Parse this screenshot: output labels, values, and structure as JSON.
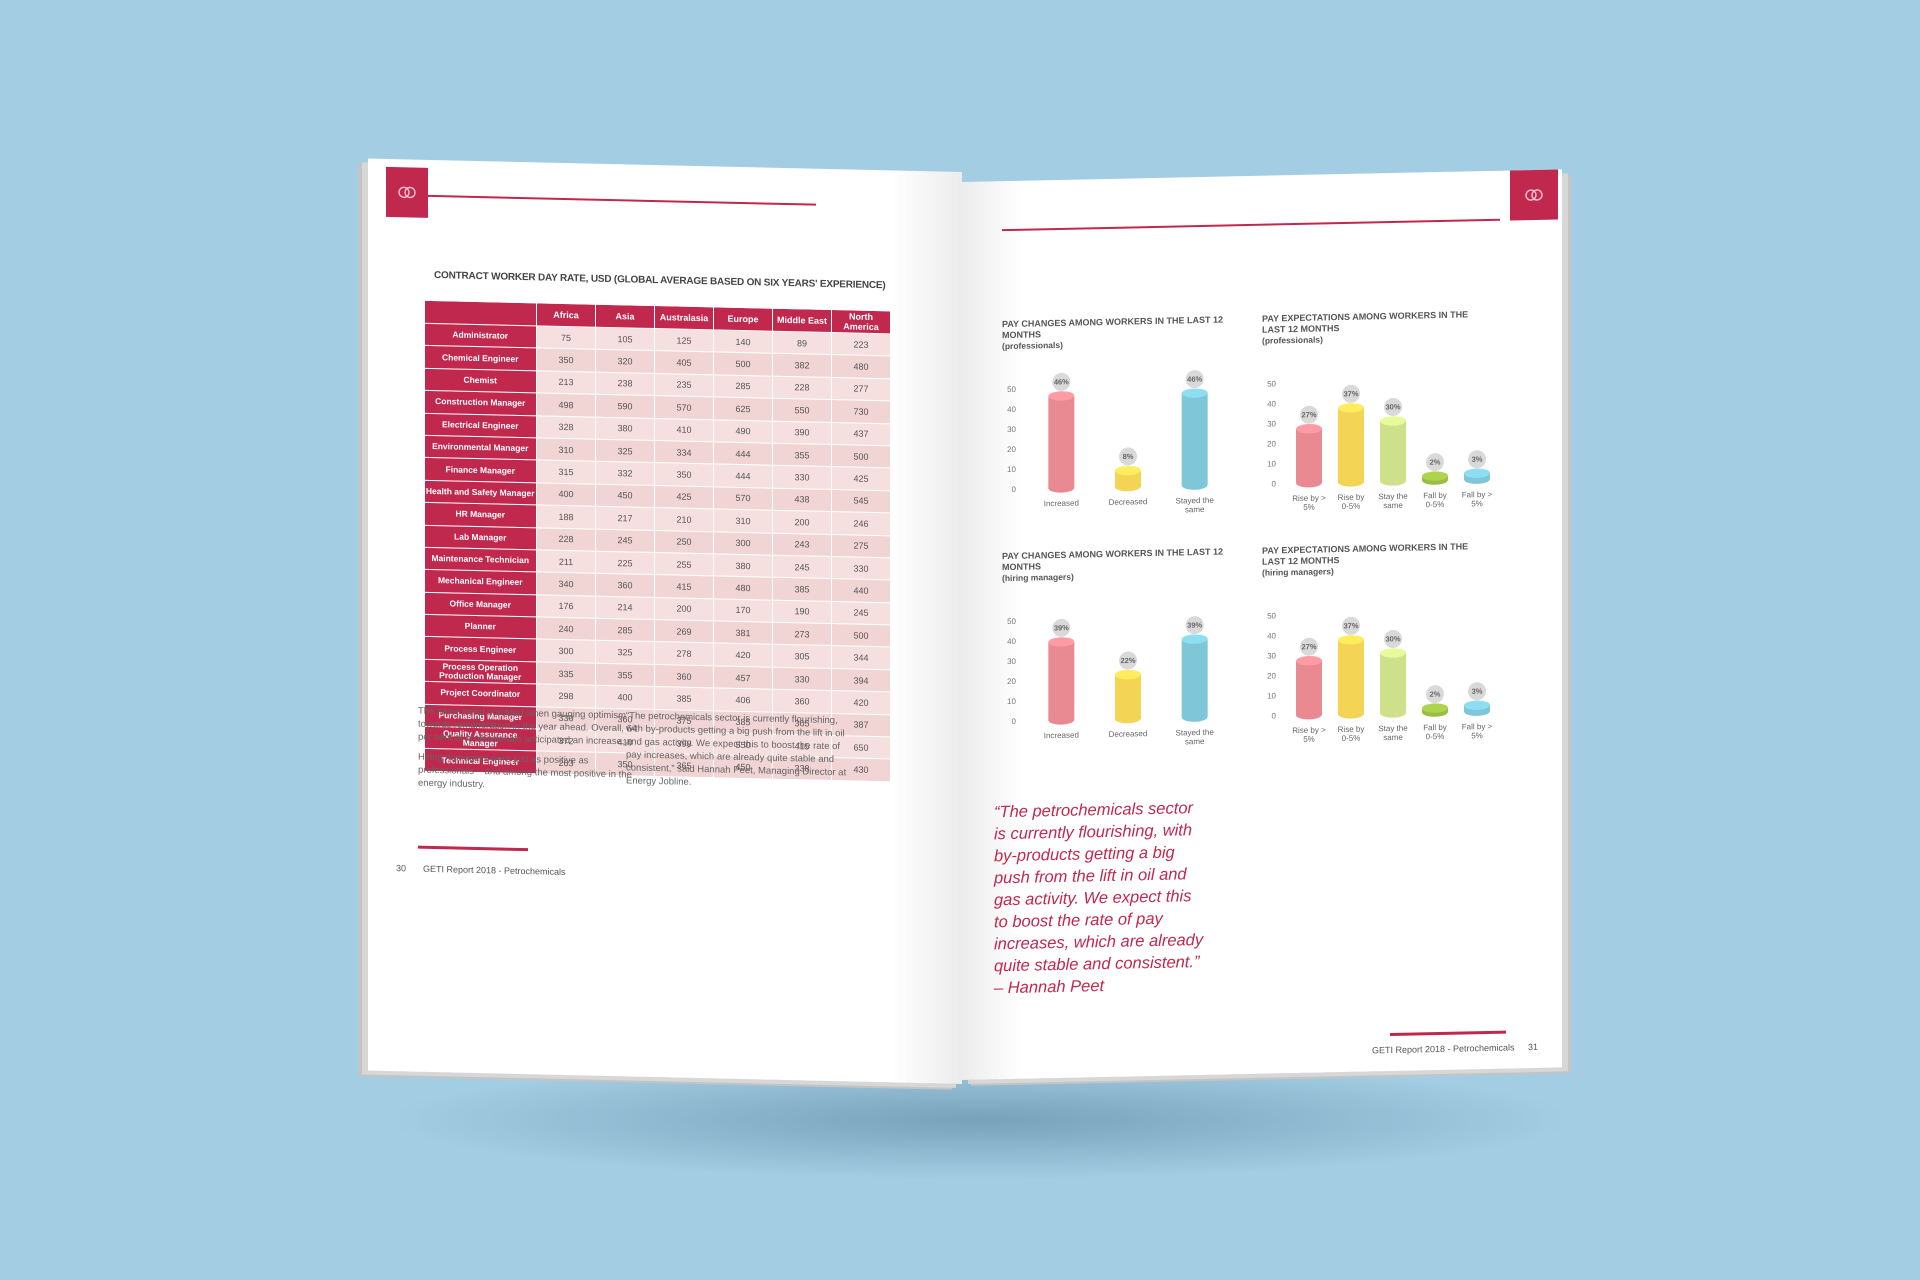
{
  "left_page": {
    "table_title": "CONTRACT WORKER DAY RATE, USD (GLOBAL AVERAGE BASED ON SIX YEARS' EXPERIENCE)",
    "columns": [
      "Africa",
      "Asia",
      "Australasia",
      "Europe",
      "Middle East",
      "North America"
    ],
    "rows": [
      {
        "role": "Administrator",
        "values": [
          "75",
          "105",
          "125",
          "140",
          "89",
          "223"
        ]
      },
      {
        "role": "Chemical Engineer",
        "values": [
          "350",
          "320",
          "405",
          "500",
          "382",
          "480"
        ]
      },
      {
        "role": "Chemist",
        "values": [
          "213",
          "238",
          "235",
          "285",
          "228",
          "277"
        ]
      },
      {
        "role": "Construction Manager",
        "values": [
          "498",
          "590",
          "570",
          "625",
          "550",
          "730"
        ]
      },
      {
        "role": "Electrical Engineer",
        "values": [
          "328",
          "380",
          "410",
          "490",
          "390",
          "437"
        ]
      },
      {
        "role": "Environmental Manager",
        "values": [
          "310",
          "325",
          "334",
          "444",
          "355",
          "500"
        ]
      },
      {
        "role": "Finance Manager",
        "values": [
          "315",
          "332",
          "350",
          "444",
          "330",
          "425"
        ]
      },
      {
        "role": "Health and Safety Manager",
        "values": [
          "400",
          "450",
          "425",
          "570",
          "438",
          "545"
        ]
      },
      {
        "role": "HR Manager",
        "values": [
          "188",
          "217",
          "210",
          "310",
          "200",
          "246"
        ]
      },
      {
        "role": "Lab Manager",
        "values": [
          "228",
          "245",
          "250",
          "300",
          "243",
          "275"
        ]
      },
      {
        "role": "Maintenance Technician",
        "values": [
          "211",
          "225",
          "255",
          "380",
          "245",
          "330"
        ]
      },
      {
        "role": "Mechanical Engineer",
        "values": [
          "340",
          "360",
          "415",
          "480",
          "385",
          "440"
        ]
      },
      {
        "role": "Office Manager",
        "values": [
          "176",
          "214",
          "200",
          "170",
          "190",
          "245"
        ]
      },
      {
        "role": "Planner",
        "values": [
          "240",
          "285",
          "269",
          "381",
          "273",
          "500"
        ]
      },
      {
        "role": "Process Engineer",
        "values": [
          "300",
          "325",
          "278",
          "420",
          "305",
          "344"
        ]
      },
      {
        "role": "Process Operation Production Manager",
        "values": [
          "335",
          "355",
          "360",
          "457",
          "330",
          "394"
        ]
      },
      {
        "role": "Project Coordinator",
        "values": [
          "298",
          "400",
          "385",
          "406",
          "360",
          "420"
        ]
      },
      {
        "role": "Purchasing Manager",
        "values": [
          "330",
          "360",
          "375",
          "385",
          "365",
          "387"
        ]
      },
      {
        "role": "Quality Assurance Manager",
        "values": [
          "372",
          "410",
          "390",
          "550",
          "415",
          "650"
        ]
      },
      {
        "role": "Technical Engineer",
        "values": [
          "263",
          "350",
          "365",
          "450",
          "338",
          "430"
        ]
      }
    ],
    "col1_paragraphs": [
      "The same trend unfolded when gauging optimism towards remuneration in the year ahead. Overall, 64 per cent of professionals anticipated an increase.",
      "Hiring managers were just as positive as professionals – and among the most positive in the energy industry."
    ],
    "col2_paragraphs": [
      "“The petrochemicals sector is currently flourishing, with by-products getting a big push from the lift in oil and gas activity. We expect this to boost the rate of pay increases, which are already quite stable and consistent,” said Hannah Peet, Managing Director at Energy Jobline."
    ],
    "page_number": "30",
    "footer": "GETI Report 2018 - Petrochemicals"
  },
  "right_page": {
    "quote": "“The petrochemicals sector is currently flourishing, with by-products getting a big push from the lift in oil and gas activity. We expect this to boost the rate of pay increases, which are already quite stable and consistent.” – Hannah Peet",
    "page_number": "31",
    "footer": "GETI Report 2018 - Petrochemicals"
  },
  "colors": {
    "accent": "#c0284e",
    "red": "#e98a93",
    "yellow": "#f3d454",
    "green": "#cfe08a",
    "olive": "#9bbd46",
    "blue": "#7fc6d8",
    "background": "#a3cde3"
  },
  "chart_data": [
    {
      "type": "bar",
      "title": "PAY CHANGES AMONG WORKERS IN THE LAST 12 MONTHS",
      "subtitle": "(professionals)",
      "categories": [
        "Increased",
        "Decreased",
        "Stayed the same"
      ],
      "values": [
        46,
        8,
        46
      ],
      "labels": [
        "46%",
        "8%",
        "46%"
      ],
      "colors": [
        "#e98a93",
        "#f3d454",
        "#7fc6d8"
      ],
      "yticks": [
        0,
        10,
        20,
        30,
        40,
        50
      ],
      "ylim": [
        0,
        50
      ]
    },
    {
      "type": "bar",
      "title": "PAY EXPECTATIONS AMONG WORKERS IN THE LAST 12 MONTHS",
      "subtitle": "(professionals)",
      "categories": [
        "Rise by > 5%",
        "Rise by 0-5%",
        "Stay the same",
        "Fall by 0-5%",
        "Fall by > 5%"
      ],
      "values": [
        27,
        37,
        30,
        2,
        3
      ],
      "labels": [
        "27%",
        "37%",
        "30%",
        "2%",
        "3%"
      ],
      "colors": [
        "#e98a93",
        "#f3d454",
        "#cfe08a",
        "#9bbd46",
        "#7fc6d8"
      ],
      "yticks": [
        0,
        10,
        20,
        30,
        40,
        50
      ],
      "ylim": [
        0,
        50
      ]
    },
    {
      "type": "bar",
      "title": "PAY CHANGES AMONG WORKERS IN THE LAST 12 MONTHS",
      "subtitle": "(hiring managers)",
      "categories": [
        "Increased",
        "Decreased",
        "Stayed the same"
      ],
      "values": [
        39,
        22,
        39
      ],
      "labels": [
        "39%",
        "22%",
        "39%"
      ],
      "colors": [
        "#e98a93",
        "#f3d454",
        "#7fc6d8"
      ],
      "yticks": [
        0,
        10,
        20,
        30,
        40,
        50
      ],
      "ylim": [
        0,
        50
      ]
    },
    {
      "type": "bar",
      "title": "PAY EXPECTATIONS AMONG WORKERS IN THE LAST 12 MONTHS",
      "subtitle": "(hiring managers)",
      "categories": [
        "Rise by > 5%",
        "Rise by 0-5%",
        "Stay the same",
        "Fall by 0-5%",
        "Fall by > 5%"
      ],
      "values": [
        27,
        37,
        30,
        2,
        3
      ],
      "labels": [
        "27%",
        "37%",
        "30%",
        "2%",
        "3%"
      ],
      "colors": [
        "#e98a93",
        "#f3d454",
        "#cfe08a",
        "#9bbd46",
        "#7fc6d8"
      ],
      "yticks": [
        0,
        10,
        20,
        30,
        40,
        50
      ],
      "ylim": [
        0,
        50
      ]
    }
  ]
}
